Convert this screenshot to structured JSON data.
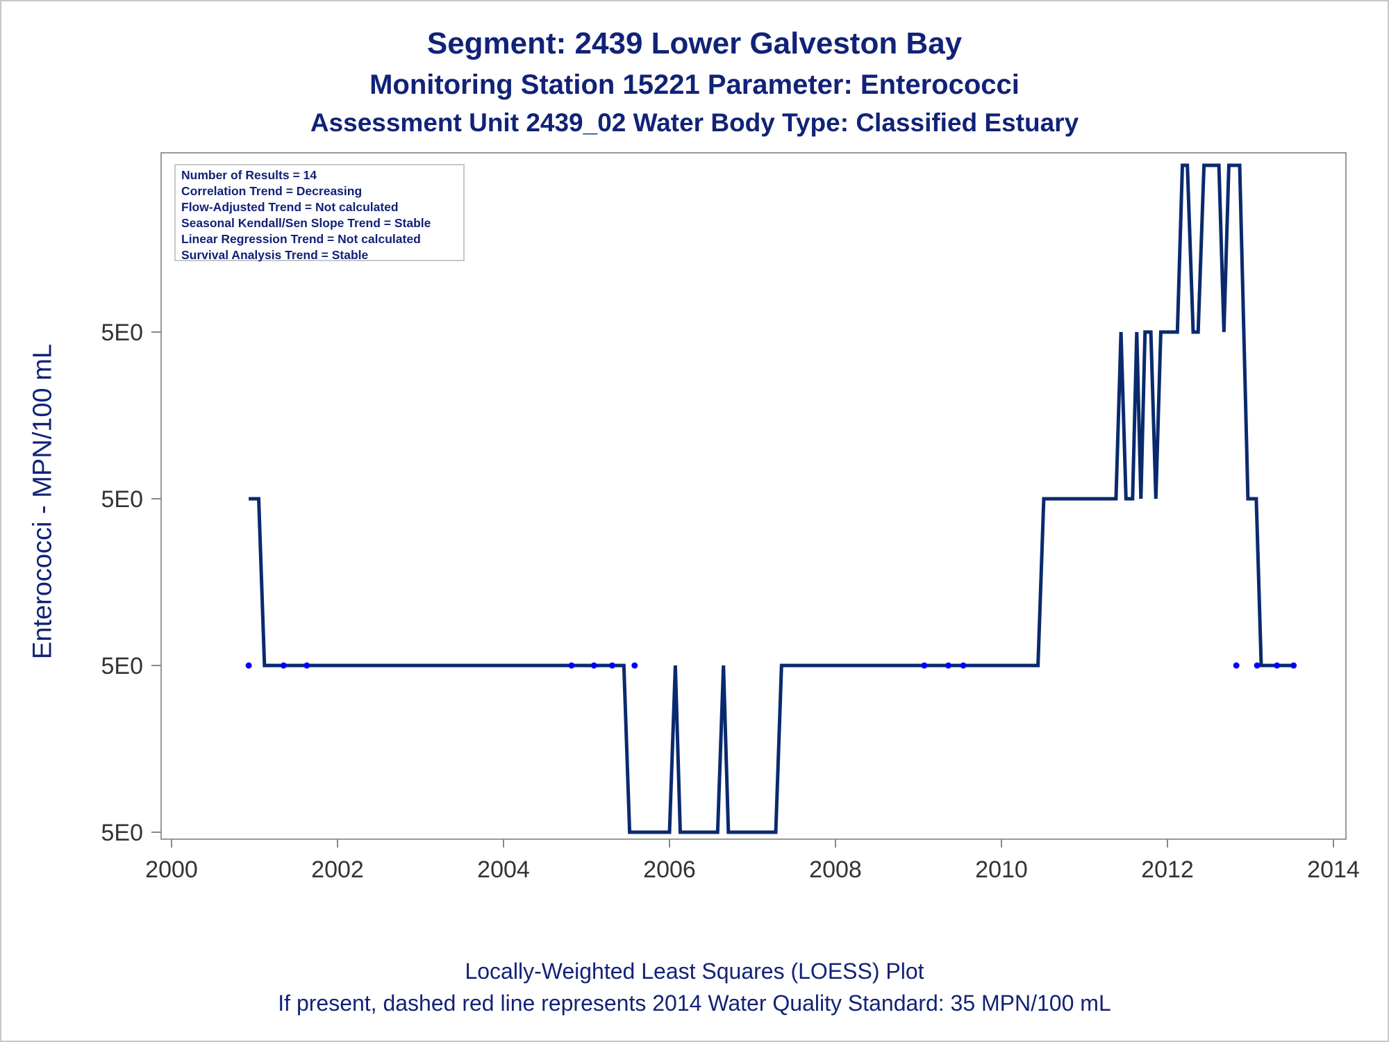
{
  "titles": {
    "line1": "Segment: 2439  Lower Galveston Bay",
    "line2": "Monitoring Station 15221 Parameter: Enterococci",
    "line3": "Assessment Unit 2439_02   Water Body Type: Classified Estuary"
  },
  "footer": {
    "line1": "Locally-Weighted Least Squares (LOESS) Plot",
    "line2": "If present, dashed red line represents 2014 Water Quality Standard: 35 MPN/100 mL"
  },
  "stats": [
    "Number of Results = 14",
    "Correlation Trend = Decreasing",
    "Flow-Adjusted Trend = Not calculated",
    "Seasonal Kendall/Sen Slope Trend = Stable",
    "Linear Regression Trend = Not calculated",
    "Survival Analysis Trend = Stable"
  ],
  "colors": {
    "line": "#0a2a6e",
    "points": "#0000ff",
    "text": "#112277",
    "axis": "#888888"
  },
  "chart_data": {
    "type": "line",
    "ylabel": "Enterococci - MPN/100 mL",
    "xlabel": "",
    "x_ticks": [
      2000,
      2002,
      2004,
      2006,
      2008,
      2010,
      2012,
      2014
    ],
    "y_tick_labels": [
      "5E0",
      "5E0",
      "5E0",
      "5E0"
    ],
    "y_level_note": "four display levels (0 = lowest tick, 3 = highest tick); all tick labels read 5E0",
    "xlim": [
      2000,
      2014
    ],
    "ylim": [
      -0.05,
      4.15
    ],
    "series": [
      {
        "type": "line",
        "points": [
          [
            2000.93,
            2.0
          ],
          [
            2001.05,
            2.0
          ],
          [
            2001.12,
            1.0
          ],
          [
            2005.45,
            1.0
          ],
          [
            2005.52,
            0.0
          ],
          [
            2006.0,
            0.0
          ],
          [
            2006.07,
            1.0
          ],
          [
            2006.13,
            0.0
          ],
          [
            2006.58,
            0.0
          ],
          [
            2006.65,
            1.0
          ],
          [
            2006.71,
            0.0
          ],
          [
            2007.28,
            0.0
          ],
          [
            2007.35,
            1.0
          ],
          [
            2010.44,
            1.0
          ],
          [
            2010.51,
            2.0
          ],
          [
            2011.38,
            2.0
          ],
          [
            2011.44,
            3.0
          ],
          [
            2011.5,
            2.0
          ],
          [
            2011.58,
            2.0
          ],
          [
            2011.63,
            3.0
          ],
          [
            2011.68,
            2.0
          ],
          [
            2011.73,
            3.0
          ],
          [
            2011.8,
            3.0
          ],
          [
            2011.86,
            2.0
          ],
          [
            2011.92,
            3.0
          ],
          [
            2012.12,
            3.0
          ],
          [
            2012.18,
            4.0
          ],
          [
            2012.24,
            4.0
          ],
          [
            2012.31,
            3.0
          ],
          [
            2012.37,
            3.0
          ],
          [
            2012.44,
            4.0
          ],
          [
            2012.62,
            4.0
          ],
          [
            2012.68,
            3.0
          ],
          [
            2012.74,
            4.0
          ],
          [
            2012.87,
            4.0
          ],
          [
            2012.97,
            2.0
          ],
          [
            2013.07,
            2.0
          ],
          [
            2013.13,
            1.0
          ],
          [
            2013.49,
            1.0
          ]
        ]
      },
      {
        "type": "scatter",
        "points": [
          [
            2000.93,
            1.0
          ],
          [
            2001.35,
            1.0
          ],
          [
            2001.63,
            1.0
          ],
          [
            2004.82,
            1.0
          ],
          [
            2005.09,
            1.0
          ],
          [
            2005.31,
            1.0
          ],
          [
            2005.58,
            1.0
          ],
          [
            2009.07,
            1.0
          ],
          [
            2009.36,
            1.0
          ],
          [
            2009.54,
            1.0
          ],
          [
            2012.83,
            1.0
          ],
          [
            2013.08,
            1.0
          ],
          [
            2013.32,
            1.0
          ],
          [
            2013.52,
            1.0
          ]
        ]
      }
    ],
    "grid": false,
    "legend": "none"
  }
}
